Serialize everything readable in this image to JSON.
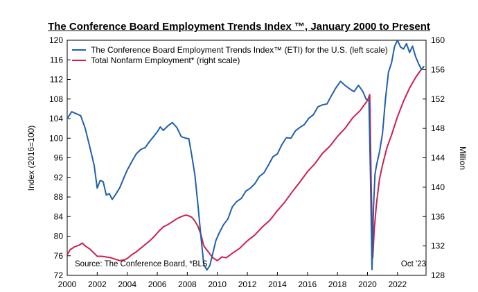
{
  "chart_data": {
    "type": "line",
    "title": "The Conference Board Employment Trends Index ™, January 2000 to Present",
    "ylabel_left": "Index (2016=100)",
    "ylabel_right": "Million",
    "x_range": [
      2000.0,
      2023.9
    ],
    "ylim_left": [
      72,
      120
    ],
    "ylim_right": [
      128,
      160
    ],
    "x_ticks": [
      "2000",
      "2002",
      "2004",
      "2006",
      "2008",
      "2010",
      "2012",
      "2014",
      "2016",
      "2018",
      "2020",
      "2022"
    ],
    "y_ticks_left": [
      "72",
      "76",
      "80",
      "84",
      "88",
      "92",
      "96",
      "100",
      "104",
      "108",
      "112",
      "116",
      "120"
    ],
    "y_ticks_right": [
      "128",
      "132",
      "136",
      "140",
      "144",
      "148",
      "152",
      "156",
      "160"
    ],
    "grid": false,
    "legend_position": "top-left",
    "source": "Source: The Conference Board, *BLS",
    "date_label": "Oct '23",
    "series": [
      {
        "name": "The Conference Board Employment Trends Index™ (ETI) for the U.S. (left scale)",
        "axis": "left",
        "color": "#1f5fad",
        "x": [
          2000.0,
          2000.3,
          2000.6,
          2000.9,
          2001.2,
          2001.5,
          2001.8,
          2002.0,
          2002.2,
          2002.4,
          2002.6,
          2002.8,
          2003.0,
          2003.2,
          2003.5,
          2003.8,
          2004.0,
          2004.3,
          2004.6,
          2004.9,
          2005.2,
          2005.5,
          2005.8,
          2006.0,
          2006.2,
          2006.4,
          2006.7,
          2007.0,
          2007.3,
          2007.6,
          2007.9,
          2008.1,
          2008.3,
          2008.5,
          2008.7,
          2008.9,
          2009.1,
          2009.3,
          2009.5,
          2009.7,
          2009.9,
          2010.1,
          2010.4,
          2010.7,
          2011.0,
          2011.3,
          2011.6,
          2011.9,
          2012.2,
          2012.5,
          2012.8,
          2013.1,
          2013.4,
          2013.7,
          2014.0,
          2014.3,
          2014.6,
          2014.9,
          2015.2,
          2015.5,
          2015.8,
          2016.1,
          2016.4,
          2016.7,
          2017.0,
          2017.3,
          2017.6,
          2017.9,
          2018.2,
          2018.5,
          2018.8,
          2019.1,
          2019.4,
          2019.7,
          2019.9,
          2020.1,
          2020.2,
          2020.3,
          2020.4,
          2020.5,
          2020.6,
          2020.8,
          2021.0,
          2021.2,
          2021.4,
          2021.6,
          2021.8,
          2022.0,
          2022.2,
          2022.4,
          2022.6,
          2022.8,
          2023.0,
          2023.2,
          2023.4,
          2023.6,
          2023.75
        ],
        "values": [
          104.0,
          105.4,
          105.0,
          104.6,
          102.0,
          98.3,
          94.4,
          89.8,
          91.4,
          91.1,
          88.4,
          88.7,
          87.5,
          88.4,
          89.9,
          92.1,
          93.5,
          95.2,
          96.8,
          97.7,
          98.1,
          99.4,
          100.5,
          101.3,
          102.3,
          101.6,
          102.5,
          103.2,
          102.2,
          100.3,
          100.0,
          99.9,
          96.4,
          92.6,
          86.6,
          80.1,
          74.2,
          73.1,
          74.0,
          76.5,
          79.1,
          80.5,
          82.3,
          83.5,
          86.0,
          87.1,
          87.7,
          89.2,
          89.8,
          90.7,
          92.2,
          92.9,
          94.5,
          96.2,
          96.8,
          98.7,
          100.1,
          100.0,
          101.5,
          102.2,
          102.8,
          104.1,
          104.8,
          106.4,
          106.8,
          107.0,
          108.7,
          110.3,
          111.6,
          110.8,
          110.1,
          109.5,
          110.8,
          109.5,
          108.0,
          107.7,
          92.0,
          73.2,
          85.6,
          92.6,
          94.5,
          97.2,
          100.9,
          108.1,
          113.5,
          115.4,
          118.7,
          120.0,
          118.6,
          118.2,
          119.3,
          117.5,
          118.8,
          116.7,
          115.2,
          114.0,
          114.6
        ]
      },
      {
        "name": "Total Nonfarm Employment* (right scale)",
        "axis": "right",
        "color": "#cc1f4f",
        "x": [
          2000.0,
          2000.2,
          2000.5,
          2000.8,
          2001.0,
          2001.2,
          2001.5,
          2001.8,
          2002.0,
          2002.3,
          2002.6,
          2002.9,
          2003.2,
          2003.5,
          2003.8,
          2004.0,
          2004.3,
          2004.6,
          2004.9,
          2005.2,
          2005.5,
          2005.8,
          2006.1,
          2006.4,
          2006.7,
          2007.0,
          2007.3,
          2007.6,
          2007.9,
          2008.1,
          2008.3,
          2008.5,
          2008.7,
          2008.9,
          2009.1,
          2009.4,
          2009.7,
          2010.0,
          2010.3,
          2010.6,
          2011.0,
          2011.5,
          2012.0,
          2012.5,
          2013.0,
          2013.5,
          2014.0,
          2014.5,
          2015.0,
          2015.5,
          2016.0,
          2016.5,
          2017.0,
          2017.5,
          2018.0,
          2018.5,
          2019.0,
          2019.5,
          2020.0,
          2020.15,
          2020.25,
          2020.35,
          2020.45,
          2020.6,
          2020.8,
          2021.0,
          2021.3,
          2021.6,
          2022.0,
          2022.4,
          2022.8,
          2023.2,
          2023.5,
          2023.75
        ],
        "values": [
          130.8,
          131.5,
          131.9,
          132.1,
          132.4,
          132.0,
          131.6,
          131.0,
          130.6,
          130.6,
          130.5,
          130.4,
          130.2,
          130.0,
          130.1,
          130.3,
          130.8,
          131.2,
          131.7,
          132.2,
          132.7,
          133.3,
          134.0,
          134.6,
          134.9,
          135.3,
          135.7,
          136.0,
          136.2,
          136.1,
          135.9,
          135.4,
          134.7,
          133.6,
          132.0,
          131.2,
          130.4,
          130.0,
          130.5,
          130.4,
          131.0,
          131.7,
          132.7,
          133.5,
          134.6,
          135.5,
          136.8,
          138.0,
          139.4,
          140.7,
          142.1,
          143.2,
          144.6,
          145.6,
          146.9,
          148.0,
          149.4,
          150.4,
          151.8,
          152.6,
          140.0,
          130.4,
          134.2,
          137.8,
          141.1,
          143.0,
          145.4,
          147.1,
          149.6,
          151.7,
          153.5,
          154.9,
          155.8,
          156.4
        ]
      }
    ]
  }
}
